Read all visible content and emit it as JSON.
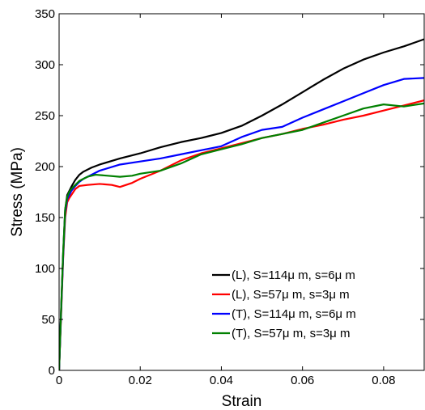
{
  "chart_data": {
    "type": "line",
    "xlabel": "Strain",
    "ylabel": "Stress (MPa)",
    "xlim": [
      0,
      0.09
    ],
    "ylim": [
      0,
      350
    ],
    "xticks": [
      0,
      0.02,
      0.04,
      0.06,
      0.08
    ],
    "xtick_labels": [
      "0",
      "0.02",
      "0.04",
      "0.06",
      "0.08"
    ],
    "yticks": [
      0,
      50,
      100,
      150,
      200,
      250,
      300,
      350
    ],
    "ytick_labels": [
      "0",
      "50",
      "100",
      "150",
      "200",
      "250",
      "300",
      "350"
    ],
    "grid": false,
    "legend_position": "bottom-right",
    "series": [
      {
        "name": "(L), S=114μ m, s=6μ m",
        "color": "#000000",
        "points": [
          [
            0,
            0
          ],
          [
            0.0005,
            60
          ],
          [
            0.001,
            115
          ],
          [
            0.0015,
            158
          ],
          [
            0.002,
            172
          ],
          [
            0.0025,
            176
          ],
          [
            0.003,
            180
          ],
          [
            0.004,
            187
          ],
          [
            0.005,
            192
          ],
          [
            0.006,
            195
          ],
          [
            0.008,
            199
          ],
          [
            0.01,
            202
          ],
          [
            0.015,
            208
          ],
          [
            0.02,
            213
          ],
          [
            0.025,
            219
          ],
          [
            0.03,
            224
          ],
          [
            0.035,
            228
          ],
          [
            0.04,
            233
          ],
          [
            0.045,
            240
          ],
          [
            0.05,
            250
          ],
          [
            0.055,
            261
          ],
          [
            0.06,
            273
          ],
          [
            0.065,
            285
          ],
          [
            0.07,
            296
          ],
          [
            0.075,
            305
          ],
          [
            0.08,
            312
          ],
          [
            0.085,
            318
          ],
          [
            0.09,
            325
          ]
        ]
      },
      {
        "name": "(L), S=57μ m, s=3μ m",
        "color": "#ff0000",
        "points": [
          [
            0,
            0
          ],
          [
            0.0005,
            55
          ],
          [
            0.001,
            110
          ],
          [
            0.0015,
            150
          ],
          [
            0.002,
            165
          ],
          [
            0.0025,
            169
          ],
          [
            0.003,
            172
          ],
          [
            0.004,
            178
          ],
          [
            0.005,
            181
          ],
          [
            0.007,
            182
          ],
          [
            0.01,
            183
          ],
          [
            0.013,
            182
          ],
          [
            0.015,
            180
          ],
          [
            0.018,
            184
          ],
          [
            0.02,
            188
          ],
          [
            0.025,
            196
          ],
          [
            0.03,
            206
          ],
          [
            0.035,
            213
          ],
          [
            0.04,
            218
          ],
          [
            0.045,
            223
          ],
          [
            0.05,
            228
          ],
          [
            0.055,
            232
          ],
          [
            0.06,
            237
          ],
          [
            0.065,
            241
          ],
          [
            0.07,
            246
          ],
          [
            0.075,
            250
          ],
          [
            0.08,
            255
          ],
          [
            0.085,
            260
          ],
          [
            0.09,
            265
          ]
        ]
      },
      {
        "name": "(T), S=114μ m, s=6μ m",
        "color": "#0000ff",
        "points": [
          [
            0,
            0
          ],
          [
            0.0005,
            58
          ],
          [
            0.001,
            112
          ],
          [
            0.0015,
            155
          ],
          [
            0.002,
            168
          ],
          [
            0.0025,
            172
          ],
          [
            0.003,
            176
          ],
          [
            0.004,
            181
          ],
          [
            0.005,
            185
          ],
          [
            0.006,
            188
          ],
          [
            0.008,
            192
          ],
          [
            0.01,
            196
          ],
          [
            0.015,
            202
          ],
          [
            0.02,
            205
          ],
          [
            0.025,
            208
          ],
          [
            0.03,
            212
          ],
          [
            0.035,
            216
          ],
          [
            0.04,
            220
          ],
          [
            0.045,
            229
          ],
          [
            0.05,
            236
          ],
          [
            0.055,
            239
          ],
          [
            0.06,
            248
          ],
          [
            0.065,
            256
          ],
          [
            0.07,
            264
          ],
          [
            0.075,
            272
          ],
          [
            0.08,
            280
          ],
          [
            0.085,
            286
          ],
          [
            0.09,
            287
          ]
        ]
      },
      {
        "name": "(T), S=57μ m, s=3μ m",
        "color": "#008000",
        "points": [
          [
            0,
            0
          ],
          [
            0.0005,
            60
          ],
          [
            0.001,
            115
          ],
          [
            0.0015,
            158
          ],
          [
            0.002,
            170
          ],
          [
            0.0025,
            175
          ],
          [
            0.003,
            178
          ],
          [
            0.004,
            182
          ],
          [
            0.005,
            186
          ],
          [
            0.007,
            190
          ],
          [
            0.009,
            192
          ],
          [
            0.012,
            191
          ],
          [
            0.015,
            190
          ],
          [
            0.018,
            191
          ],
          [
            0.02,
            193
          ],
          [
            0.025,
            196
          ],
          [
            0.03,
            203
          ],
          [
            0.035,
            212
          ],
          [
            0.04,
            217
          ],
          [
            0.045,
            222
          ],
          [
            0.05,
            228
          ],
          [
            0.055,
            232
          ],
          [
            0.06,
            236
          ],
          [
            0.065,
            243
          ],
          [
            0.07,
            250
          ],
          [
            0.075,
            257
          ],
          [
            0.08,
            261
          ],
          [
            0.085,
            259
          ],
          [
            0.09,
            262
          ]
        ]
      }
    ]
  }
}
